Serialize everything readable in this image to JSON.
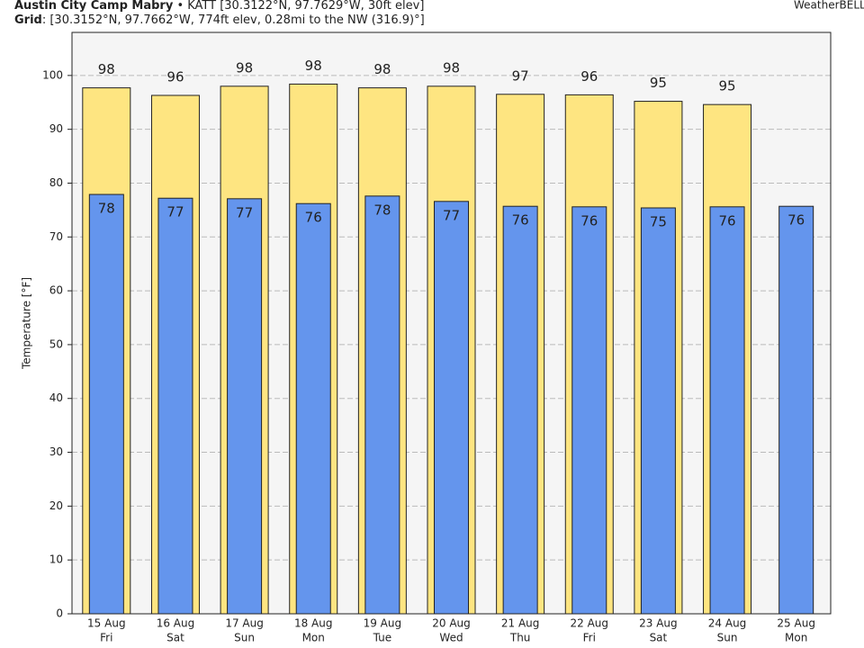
{
  "header": {
    "station": "Austin City Camp Mabry",
    "station_info": " • KATT [30.3122°N, 97.7629°W, 30ft elev]",
    "grid_key": "Grid",
    "grid_info": ": [30.3152°N, 97.7662°W, 774ft elev, 0.28mi to the NW (316.9)°]",
    "logo": "WeatherBELL"
  },
  "chart_data": {
    "type": "bar",
    "y_label": "Temperature [°F]",
    "categories": [
      "15 Aug",
      "16 Aug",
      "17 Aug",
      "18 Aug",
      "19 Aug",
      "20 Aug",
      "21 Aug",
      "22 Aug",
      "23 Aug",
      "24 Aug",
      "25 Aug"
    ],
    "weekdays": [
      "Fri",
      "Sat",
      "Sun",
      "Mon",
      "Tue",
      "Wed",
      "Thu",
      "Fri",
      "Sat",
      "Sun",
      "Mon"
    ],
    "series": [
      {
        "color": "#fee581",
        "values": [
          97.7,
          96.3,
          98,
          98.4,
          97.7,
          98,
          96.5,
          96.4,
          95.2,
          94.6,
          null
        ],
        "value_labels": [
          "98",
          "96",
          "98",
          "98",
          "98",
          "98",
          "97",
          "96",
          "95",
          "95",
          null
        ]
      },
      {
        "color": "#6495ed",
        "values": [
          77.9,
          77.2,
          77.1,
          76.2,
          77.6,
          76.6,
          75.7,
          75.6,
          75.4,
          75.6,
          75.7
        ],
        "value_labels": [
          "78",
          "77",
          "77",
          "76",
          "78",
          "77",
          "76",
          "76",
          "75",
          "76",
          "76"
        ]
      }
    ],
    "ylim": [
      0,
      108
    ],
    "yticks": [
      0,
      10,
      20,
      30,
      40,
      50,
      60,
      70,
      80,
      90,
      100
    ],
    "grid": true
  }
}
